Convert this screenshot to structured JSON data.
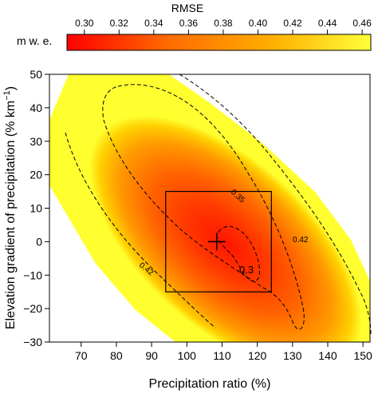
{
  "chart_data": {
    "type": "heatmap",
    "colorbar": {
      "title": "RMSE",
      "unit_label": "m w. e.",
      "range": [
        0.29,
        0.465
      ],
      "ticks": [
        "0.30",
        "0.32",
        "0.34",
        "0.36",
        "0.38",
        "0.40",
        "0.42",
        "0.44",
        "0.46"
      ],
      "colors": [
        "#ff0000",
        "#ff6a00",
        "#ffb000",
        "#ffff3a"
      ]
    },
    "xlabel": "Precipitation ratio (%)",
    "ylabel": "Elevation gradient of precipitation (% km",
    "ylabel_superscript": "−1",
    "ylabel_suffix": ")",
    "xlim": [
      61,
      152
    ],
    "ylim": [
      -30,
      50
    ],
    "xticks": [
      "70",
      "80",
      "90",
      "100",
      "110",
      "120",
      "130",
      "140",
      "150"
    ],
    "yticks": [
      "−30",
      "−20",
      "−10",
      "0",
      "10",
      "20",
      "30",
      "40",
      "50"
    ],
    "grid": false,
    "minimum": {
      "x": 108.5,
      "y": 0,
      "rmse": 0.29
    },
    "contours": [
      {
        "level": 0.3,
        "label": "0.3"
      },
      {
        "level": 0.35,
        "label": "0.35"
      },
      {
        "level": 0.42,
        "label": "0.42"
      },
      {
        "level": 0.42,
        "label": "0.42"
      }
    ],
    "rectangle": {
      "x": [
        94,
        124
      ],
      "y": [
        -15,
        15
      ]
    }
  }
}
